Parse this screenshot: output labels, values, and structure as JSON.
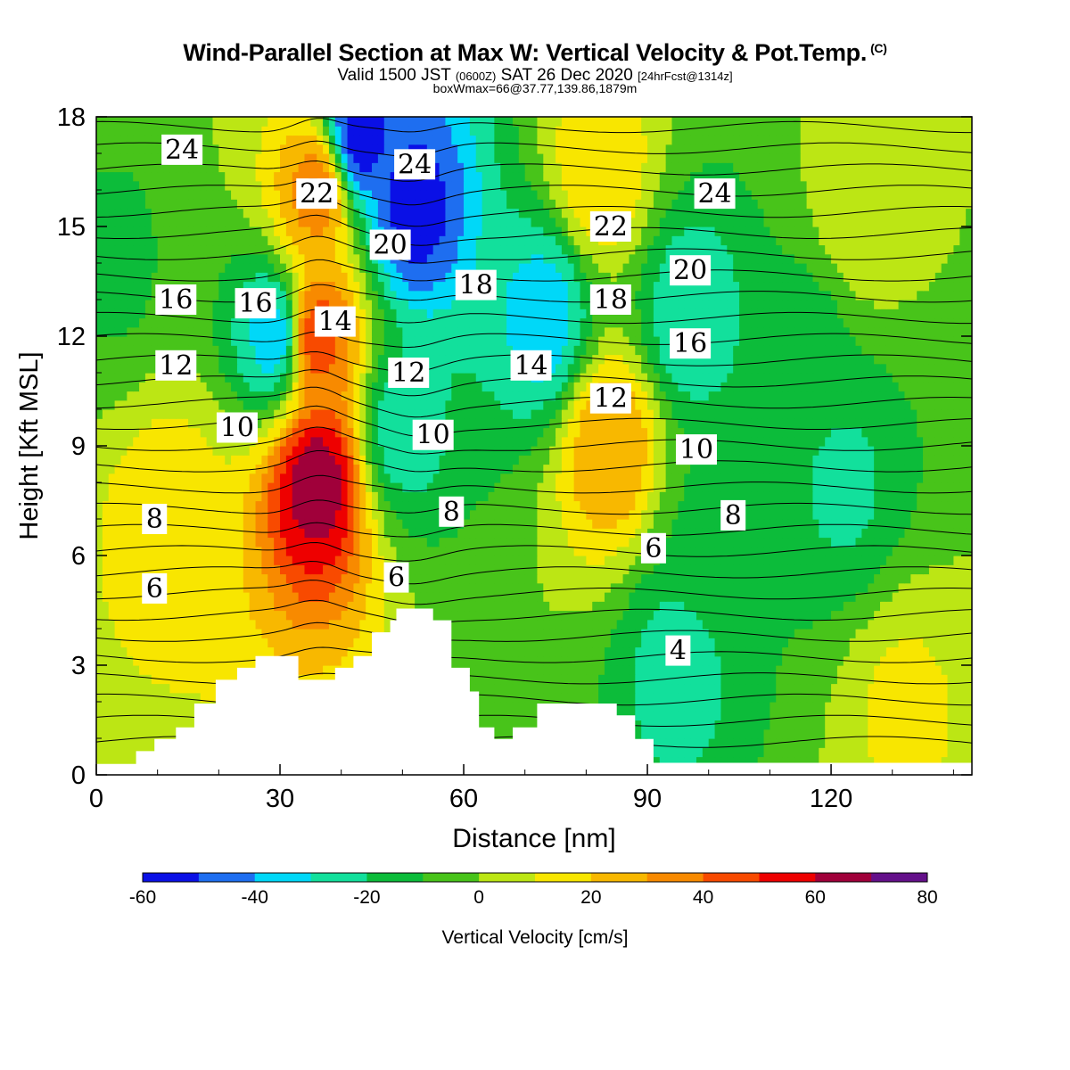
{
  "header": {
    "title": "Wind-Parallel Section at Max W: Vertical Velocity & Pot.Temp.",
    "title_mark": "(C)",
    "subtitle_a": "Valid 1500 JST",
    "subtitle_b": "(0600Z)",
    "subtitle_c": "SAT 26 Dec 2020",
    "subtitle_d": "[24hrFcst@1314z]",
    "box_info": "boxWmax=66@37.77,139.86,1879m"
  },
  "chart_data": {
    "type": "heatmap",
    "title": "Wind-Parallel Section at Max W: Vertical Velocity & Pot.Temp.",
    "xlabel": "Distance [nm]",
    "ylabel": "Height [Kft MSL]",
    "xlim": [
      0,
      143
    ],
    "ylim": [
      0,
      18
    ],
    "x_ticks": [
      0,
      30,
      60,
      90,
      120
    ],
    "y_ticks": [
      0,
      3,
      6,
      9,
      12,
      15,
      18
    ],
    "colorbar": {
      "label": "Vertical Velocity [cm/s]",
      "tick_values": [
        -60,
        -40,
        -20,
        0,
        20,
        40,
        60,
        80
      ],
      "levels": [
        -60,
        -50,
        -40,
        -30,
        -20,
        -10,
        0,
        10,
        20,
        30,
        40,
        50,
        60,
        70,
        80
      ],
      "colors": [
        "#0a10e6",
        "#1e6ef0",
        "#00d8f8",
        "#12e09c",
        "#0cbc3a",
        "#48c41a",
        "#bce614",
        "#f8e600",
        "#f8b800",
        "#f88a00",
        "#f84a00",
        "#ee0000",
        "#a0003a",
        "#64108a"
      ]
    },
    "w_background_cms": 0,
    "w_features": [
      {
        "x": 36,
        "y": 8.0,
        "w_cms": 66
      },
      {
        "x": 36,
        "y": 12.0,
        "w_cms": 45
      },
      {
        "x": 36,
        "y": 16.0,
        "w_cms": 35
      },
      {
        "x": 43,
        "y": 17.5,
        "w_cms": -55
      },
      {
        "x": 52,
        "y": 15.5,
        "w_cms": -55
      },
      {
        "x": 29,
        "y": 12.0,
        "w_cms": -35
      },
      {
        "x": 50,
        "y": 9.5,
        "w_cms": -25
      },
      {
        "x": 73,
        "y": 12.5,
        "w_cms": -35
      },
      {
        "x": 84,
        "y": 9.0,
        "w_cms": 30
      },
      {
        "x": 82,
        "y": 16.5,
        "w_cms": 18
      },
      {
        "x": 12,
        "y": 7.0,
        "w_cms": 17
      },
      {
        "x": 97,
        "y": 12.5,
        "w_cms": -28
      },
      {
        "x": 122,
        "y": 8.0,
        "w_cms": -22
      },
      {
        "x": 116,
        "y": 11.5,
        "w_cms": -15
      },
      {
        "x": 100,
        "y": 6.5,
        "w_cms": -12
      },
      {
        "x": 132,
        "y": 1.8,
        "w_cms": 12
      },
      {
        "x": 125,
        "y": 15.5,
        "w_cms": 8
      },
      {
        "x": 95,
        "y": 3.0,
        "w_cms": -25
      },
      {
        "x": 3,
        "y": 14.0,
        "w_cms": -12
      }
    ],
    "terrain_height_kft": [
      [
        0,
        0.3
      ],
      [
        6.5,
        0.3
      ],
      [
        6.5,
        0.65
      ],
      [
        9.5,
        0.65
      ],
      [
        9.5,
        0.98
      ],
      [
        13,
        0.98
      ],
      [
        13,
        1.3
      ],
      [
        16,
        1.3
      ],
      [
        16,
        1.95
      ],
      [
        19.5,
        1.95
      ],
      [
        19.5,
        2.6
      ],
      [
        23,
        2.6
      ],
      [
        23,
        2.93
      ],
      [
        26,
        2.93
      ],
      [
        26,
        3.25
      ],
      [
        33,
        3.25
      ],
      [
        33,
        2.6
      ],
      [
        39,
        2.6
      ],
      [
        39,
        2.93
      ],
      [
        42,
        2.93
      ],
      [
        42,
        3.25
      ],
      [
        45,
        3.25
      ],
      [
        45,
        3.9
      ],
      [
        48,
        3.9
      ],
      [
        48,
        4.23
      ],
      [
        49,
        4.23
      ],
      [
        49,
        4.55
      ],
      [
        55,
        4.55
      ],
      [
        55,
        4.23
      ],
      [
        58,
        4.23
      ],
      [
        58,
        2.93
      ],
      [
        61,
        2.93
      ],
      [
        61,
        2.28
      ],
      [
        62.5,
        2.28
      ],
      [
        62.5,
        1.3
      ],
      [
        65,
        1.3
      ],
      [
        65,
        0.98
      ],
      [
        68,
        0.98
      ],
      [
        68,
        1.3
      ],
      [
        72,
        1.3
      ],
      [
        72,
        1.95
      ],
      [
        85,
        1.95
      ],
      [
        85,
        1.63
      ],
      [
        88,
        1.63
      ],
      [
        88,
        0.98
      ],
      [
        91,
        0.98
      ],
      [
        91,
        0.33
      ],
      [
        143,
        0.33
      ]
    ],
    "theta_contours": {
      "count": 32,
      "labels": [
        {
          "text": "24",
          "x": 14,
          "y": 17.1
        },
        {
          "text": "22",
          "x": 36,
          "y": 15.9
        },
        {
          "text": "24",
          "x": 52,
          "y": 16.7
        },
        {
          "text": "20",
          "x": 48,
          "y": 14.5
        },
        {
          "text": "18",
          "x": 62,
          "y": 13.4
        },
        {
          "text": "22",
          "x": 84,
          "y": 15.0
        },
        {
          "text": "24",
          "x": 101,
          "y": 15.9
        },
        {
          "text": "20",
          "x": 97,
          "y": 13.8
        },
        {
          "text": "16",
          "x": 13,
          "y": 13.0
        },
        {
          "text": "16",
          "x": 26,
          "y": 12.9
        },
        {
          "text": "14",
          "x": 39,
          "y": 12.4
        },
        {
          "text": "18",
          "x": 84,
          "y": 13.0
        },
        {
          "text": "16",
          "x": 97,
          "y": 11.8
        },
        {
          "text": "12",
          "x": 13,
          "y": 11.2
        },
        {
          "text": "12",
          "x": 51,
          "y": 11.0
        },
        {
          "text": "14",
          "x": 71,
          "y": 11.2
        },
        {
          "text": "12",
          "x": 84,
          "y": 10.3
        },
        {
          "text": "10",
          "x": 23,
          "y": 9.5
        },
        {
          "text": "10",
          "x": 55,
          "y": 9.3
        },
        {
          "text": "10",
          "x": 98,
          "y": 8.9
        },
        {
          "text": "8",
          "x": 9.5,
          "y": 7.0
        },
        {
          "text": "8",
          "x": 58,
          "y": 7.2
        },
        {
          "text": "8",
          "x": 104,
          "y": 7.1
        },
        {
          "text": "6",
          "x": 9.5,
          "y": 5.1
        },
        {
          "text": "6",
          "x": 49,
          "y": 5.4
        },
        {
          "text": "6",
          "x": 91,
          "y": 6.2
        },
        {
          "text": "4",
          "x": 95,
          "y": 3.4
        }
      ]
    }
  }
}
